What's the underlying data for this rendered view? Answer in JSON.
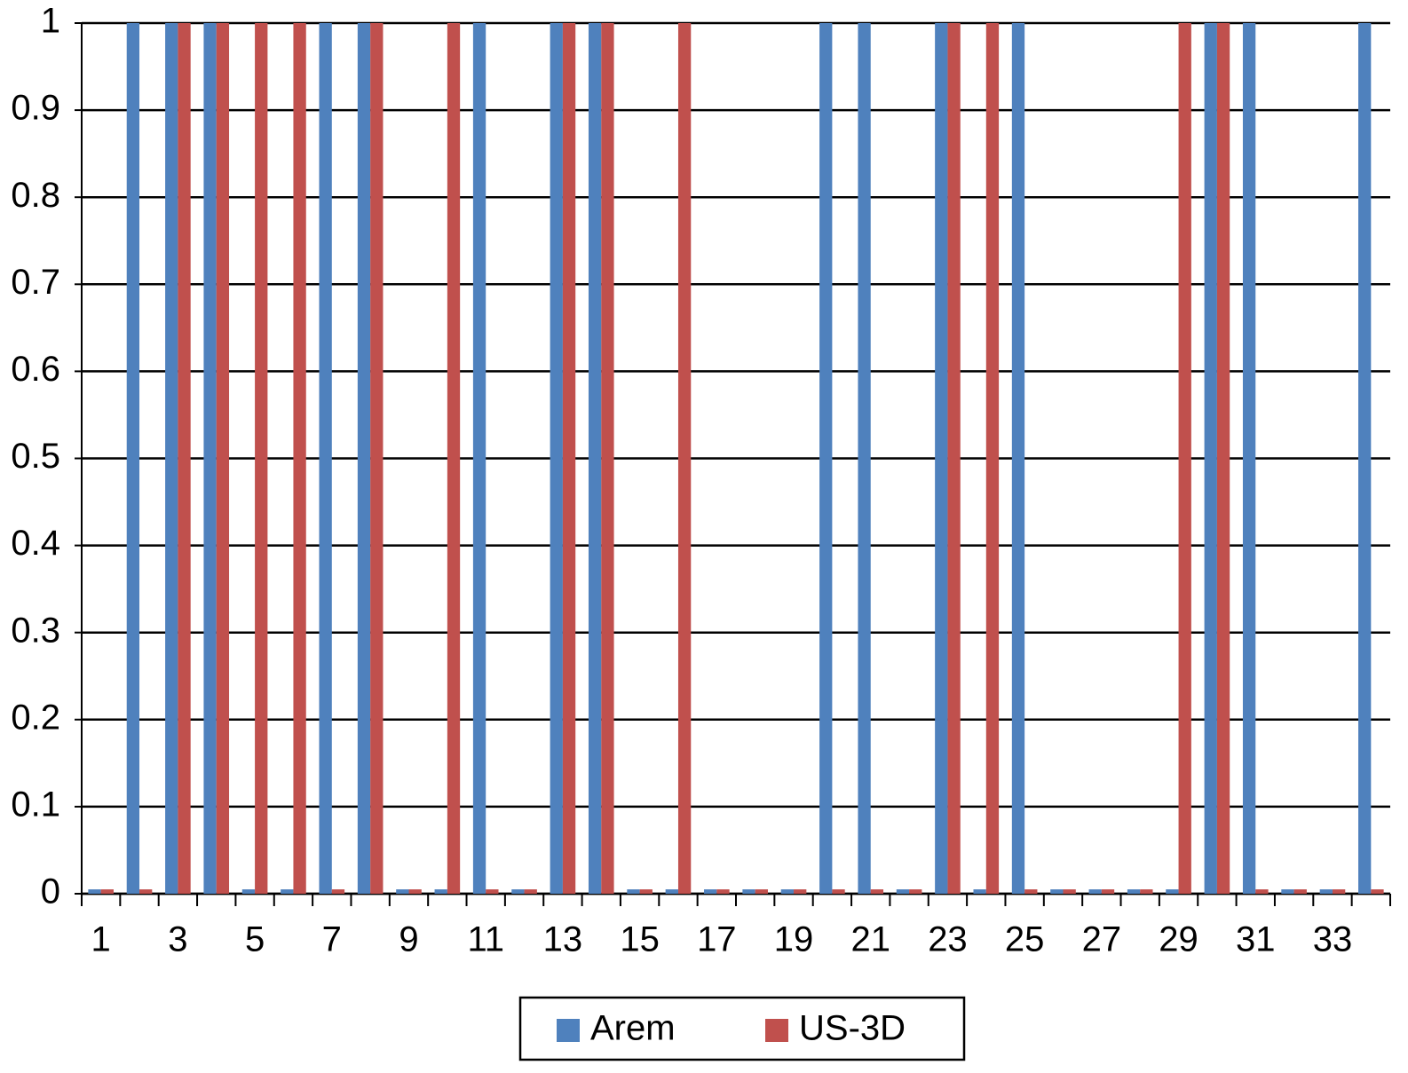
{
  "chart_data": {
    "type": "bar",
    "categories": [
      1,
      null,
      3,
      null,
      5,
      null,
      7,
      null,
      9,
      null,
      11,
      null,
      13,
      null,
      15,
      null,
      17,
      null,
      19,
      null,
      21,
      null,
      23,
      null,
      25,
      null,
      27,
      null,
      29,
      null,
      31,
      null,
      33,
      null
    ],
    "series": [
      {
        "name": "Arem",
        "color": "#4f81bd",
        "values": [
          0.005,
          1,
          1,
          1,
          0.005,
          0.005,
          1,
          1,
          0.005,
          0.005,
          1,
          0.005,
          1,
          1,
          0.005,
          0.005,
          0.005,
          0.005,
          0.005,
          1,
          1,
          0.005,
          1,
          0.005,
          1,
          0.005,
          0.005,
          0.005,
          0.005,
          1,
          1,
          0.005,
          0.005,
          1
        ]
      },
      {
        "name": "US-3D",
        "color": "#c0504d",
        "values": [
          0.005,
          0.005,
          1,
          1,
          1,
          1,
          0.005,
          1,
          0.005,
          1,
          0.005,
          0.005,
          1,
          1,
          0.005,
          1,
          0.005,
          0.005,
          0.005,
          0.005,
          0.005,
          0.005,
          1,
          1,
          0.005,
          0.005,
          0.005,
          0.005,
          1,
          1,
          0.005,
          0.005,
          0.005,
          0.005
        ]
      }
    ],
    "ylim": [
      0,
      1
    ],
    "yticks": [
      0,
      0.1,
      0.2,
      0.3,
      0.4,
      0.5,
      0.6,
      0.7,
      0.8,
      0.9,
      1
    ],
    "grid": true,
    "legend": "bottom"
  }
}
